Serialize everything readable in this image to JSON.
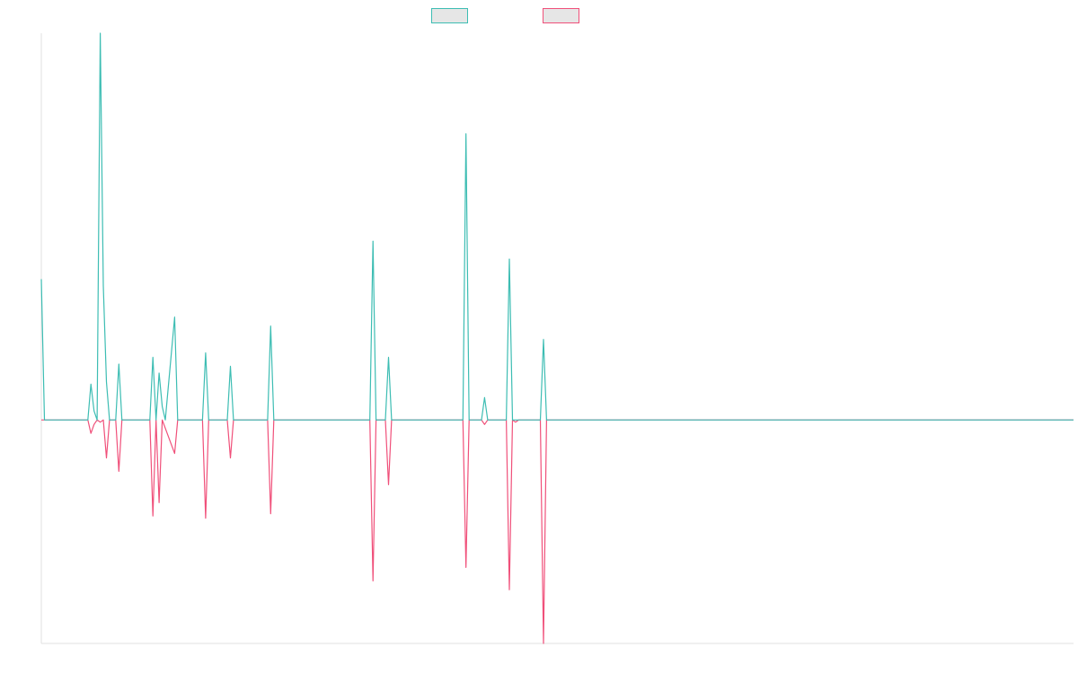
{
  "chart_data": {
    "type": "line",
    "title": "",
    "xlabel": "",
    "ylabel": "",
    "legend": {
      "position": "top-center",
      "show_labels": false
    },
    "grid": false,
    "xlim": [
      0,
      333
    ],
    "ylim": [
      -1.0,
      1.73
    ],
    "colors": {
      "series_a": "#3dbdb3",
      "series_b": "#f0507a"
    },
    "series": [
      {
        "key": "a",
        "values": [
          [
            0,
            0.63
          ],
          [
            1,
            0
          ],
          [
            15,
            0
          ],
          [
            16,
            0.16
          ],
          [
            17,
            0.04
          ],
          [
            18,
            0
          ],
          [
            19,
            1.73
          ],
          [
            20,
            0.6
          ],
          [
            21,
            0.17
          ],
          [
            22,
            0
          ],
          [
            24,
            0
          ],
          [
            25,
            0.25
          ],
          [
            26,
            0
          ],
          [
            35,
            0
          ],
          [
            36,
            0.28
          ],
          [
            37,
            0
          ],
          [
            38,
            0.21
          ],
          [
            39,
            0.06
          ],
          [
            40,
            0
          ],
          [
            43,
            0.46
          ],
          [
            44,
            0
          ],
          [
            52,
            0
          ],
          [
            53,
            0.3
          ],
          [
            54,
            0
          ],
          [
            60,
            0
          ],
          [
            61,
            0.24
          ],
          [
            62,
            0
          ],
          [
            73,
            0
          ],
          [
            74,
            0.42
          ],
          [
            75,
            0
          ],
          [
            106,
            0
          ],
          [
            107,
            0.8
          ],
          [
            108,
            0
          ],
          [
            111,
            0
          ],
          [
            112,
            0.28
          ],
          [
            113,
            0
          ],
          [
            136,
            0
          ],
          [
            137,
            1.28
          ],
          [
            138,
            0
          ],
          [
            142,
            0
          ],
          [
            143,
            0.1
          ],
          [
            144,
            0
          ],
          [
            150,
            0
          ],
          [
            151,
            0.72
          ],
          [
            152,
            0
          ],
          [
            161,
            0
          ],
          [
            162,
            0.36
          ],
          [
            163,
            0
          ],
          [
            333,
            0
          ]
        ]
      },
      {
        "key": "b",
        "values": [
          [
            0,
            0
          ],
          [
            15,
            0
          ],
          [
            16,
            -0.06
          ],
          [
            17,
            -0.02
          ],
          [
            18,
            0
          ],
          [
            19,
            -0.01
          ],
          [
            20,
            0
          ],
          [
            21,
            -0.17
          ],
          [
            22,
            0
          ],
          [
            24,
            0
          ],
          [
            25,
            -0.23
          ],
          [
            26,
            0
          ],
          [
            35,
            0
          ],
          [
            36,
            -0.43
          ],
          [
            37,
            0
          ],
          [
            38,
            -0.37
          ],
          [
            39,
            0
          ],
          [
            43,
            -0.15
          ],
          [
            44,
            0
          ],
          [
            52,
            0
          ],
          [
            53,
            -0.44
          ],
          [
            54,
            0
          ],
          [
            60,
            0
          ],
          [
            61,
            -0.17
          ],
          [
            62,
            0
          ],
          [
            73,
            0
          ],
          [
            74,
            -0.42
          ],
          [
            75,
            0
          ],
          [
            106,
            0
          ],
          [
            107,
            -0.72
          ],
          [
            108,
            0
          ],
          [
            111,
            0
          ],
          [
            112,
            -0.29
          ],
          [
            113,
            0
          ],
          [
            136,
            0
          ],
          [
            137,
            -0.66
          ],
          [
            138,
            0
          ],
          [
            142,
            0
          ],
          [
            143,
            -0.02
          ],
          [
            144,
            0
          ],
          [
            150,
            0
          ],
          [
            151,
            -0.76
          ],
          [
            152,
            0
          ],
          [
            153,
            -0.01
          ],
          [
            154,
            0
          ],
          [
            161,
            0
          ],
          [
            162,
            -1.0
          ],
          [
            163,
            0
          ],
          [
            333,
            0
          ]
        ]
      }
    ]
  }
}
